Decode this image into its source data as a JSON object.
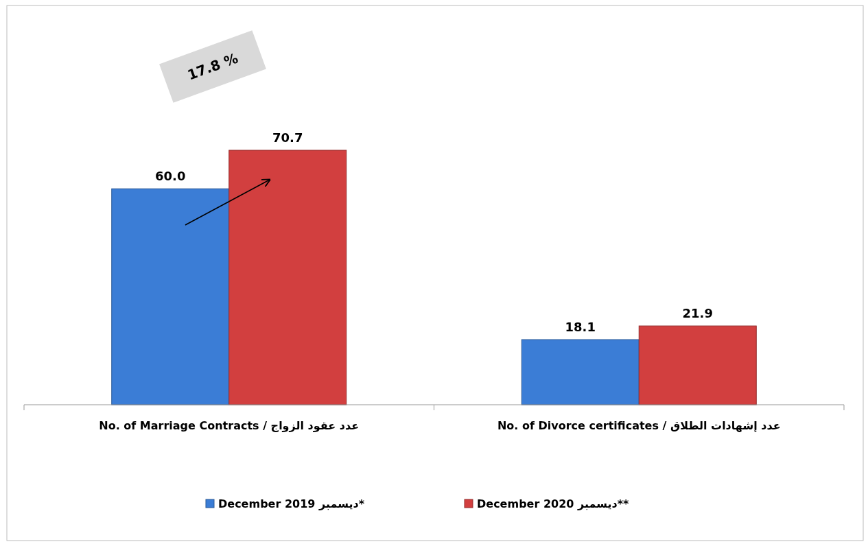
{
  "chart_data": {
    "type": "bar",
    "categories": [
      "No. of Marriage Contracts / عدد عقود الزواج",
      "No. of Divorce certificates / عدد إشهادات الطلاق"
    ],
    "series": [
      {
        "name": "December 2019 ديسمبر*",
        "color": "#3b7dd6",
        "values": [
          60.0,
          18.1
        ],
        "value_labels": [
          "60.0",
          "18.1"
        ]
      },
      {
        "name": "December 2020 ديسمبر**",
        "color": "#d23f3f",
        "values": [
          70.7,
          21.9
        ],
        "value_labels": [
          "70.7",
          "21.9"
        ]
      }
    ],
    "legend": "bottom",
    "annotations": [
      "17.8 %"
    ]
  }
}
